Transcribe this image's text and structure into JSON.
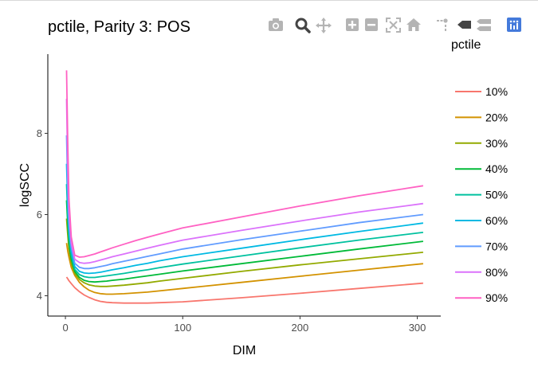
{
  "chart_data": {
    "type": "line",
    "title": "pctile, Parity 3: POS",
    "xlabel": "DIM",
    "ylabel": "logSCC",
    "xlim": [
      -15,
      320
    ],
    "ylim": [
      3.5,
      9.95
    ],
    "xticks": [
      0,
      100,
      200,
      300
    ],
    "xtick_labels": [
      "0",
      "100",
      "200",
      "300"
    ],
    "yticks": [
      4,
      6,
      8
    ],
    "ytick_labels": [
      "4",
      "6",
      "8"
    ],
    "grid": false,
    "legend_title": "pctile",
    "legend_position": "right",
    "x": [
      1,
      2,
      3,
      5,
      8,
      12,
      16,
      20,
      25,
      30,
      35,
      40,
      50,
      60,
      70,
      80,
      100,
      150,
      200,
      250,
      305
    ],
    "series": [
      {
        "name": "10%",
        "color": "#F8766D",
        "values": [
          4.46,
          4.42,
          4.37,
          4.3,
          4.2,
          4.1,
          4.02,
          3.96,
          3.9,
          3.86,
          3.84,
          3.83,
          3.82,
          3.82,
          3.82,
          3.83,
          3.85,
          3.95,
          4.06,
          4.18,
          4.31
        ]
      },
      {
        "name": "20%",
        "color": "#D39200",
        "values": [
          5.3,
          5.1,
          4.95,
          4.7,
          4.5,
          4.33,
          4.22,
          4.14,
          4.08,
          4.05,
          4.04,
          4.04,
          4.05,
          4.07,
          4.09,
          4.12,
          4.18,
          4.33,
          4.48,
          4.63,
          4.79
        ]
      },
      {
        "name": "30%",
        "color": "#93AA00",
        "values": [
          5.9,
          5.5,
          5.15,
          4.8,
          4.55,
          4.4,
          4.32,
          4.27,
          4.24,
          4.23,
          4.23,
          4.24,
          4.26,
          4.29,
          4.32,
          4.36,
          4.43,
          4.6,
          4.76,
          4.91,
          5.07
        ]
      },
      {
        "name": "40%",
        "color": "#00BA38",
        "values": [
          6.35,
          5.75,
          5.3,
          4.9,
          4.6,
          4.45,
          4.38,
          4.35,
          4.34,
          4.35,
          4.36,
          4.38,
          4.41,
          4.45,
          4.49,
          4.53,
          4.61,
          4.79,
          4.97,
          5.15,
          5.34
        ]
      },
      {
        "name": "50%",
        "color": "#00C19F",
        "values": [
          6.75,
          6.0,
          5.45,
          5.0,
          4.65,
          4.52,
          4.47,
          4.45,
          4.45,
          4.47,
          4.49,
          4.51,
          4.55,
          4.6,
          4.64,
          4.69,
          4.78,
          4.98,
          5.18,
          5.37,
          5.56
        ]
      },
      {
        "name": "60%",
        "color": "#00B9E3",
        "values": [
          7.25,
          6.25,
          5.6,
          5.1,
          4.72,
          4.6,
          4.56,
          4.55,
          4.56,
          4.58,
          4.61,
          4.64,
          4.69,
          4.75,
          4.8,
          4.86,
          4.96,
          5.17,
          5.38,
          5.58,
          5.79
        ]
      },
      {
        "name": "70%",
        "color": "#619CFF",
        "values": [
          7.95,
          6.6,
          5.8,
          5.2,
          4.8,
          4.7,
          4.67,
          4.67,
          4.69,
          4.72,
          4.75,
          4.79,
          4.85,
          4.91,
          4.97,
          5.03,
          5.15,
          5.38,
          5.59,
          5.8,
          6.0
        ]
      },
      {
        "name": "80%",
        "color": "#DB72FB",
        "values": [
          8.85,
          7.1,
          6.05,
          5.3,
          4.9,
          4.82,
          4.8,
          4.81,
          4.84,
          4.88,
          4.92,
          4.96,
          5.03,
          5.1,
          5.17,
          5.24,
          5.37,
          5.61,
          5.84,
          6.06,
          6.27
        ]
      },
      {
        "name": "90%",
        "color": "#FF61C3",
        "values": [
          9.55,
          7.8,
          6.4,
          5.45,
          5.0,
          4.95,
          4.96,
          4.99,
          5.03,
          5.08,
          5.13,
          5.18,
          5.27,
          5.36,
          5.44,
          5.52,
          5.67,
          5.94,
          6.21,
          6.46,
          6.71
        ]
      }
    ]
  },
  "modebar": {
    "icons": [
      "camera-icon",
      "zoom-icon",
      "pan-icon",
      "zoom-in-icon",
      "zoom-out-icon",
      "autoscale-icon",
      "reset-axes-icon",
      "spike-lines-icon",
      "hover-closest-icon",
      "hover-compare-icon",
      "plotly-logo-icon"
    ],
    "accent_color": "#b4b4b4",
    "logo_color": "#447adb"
  }
}
